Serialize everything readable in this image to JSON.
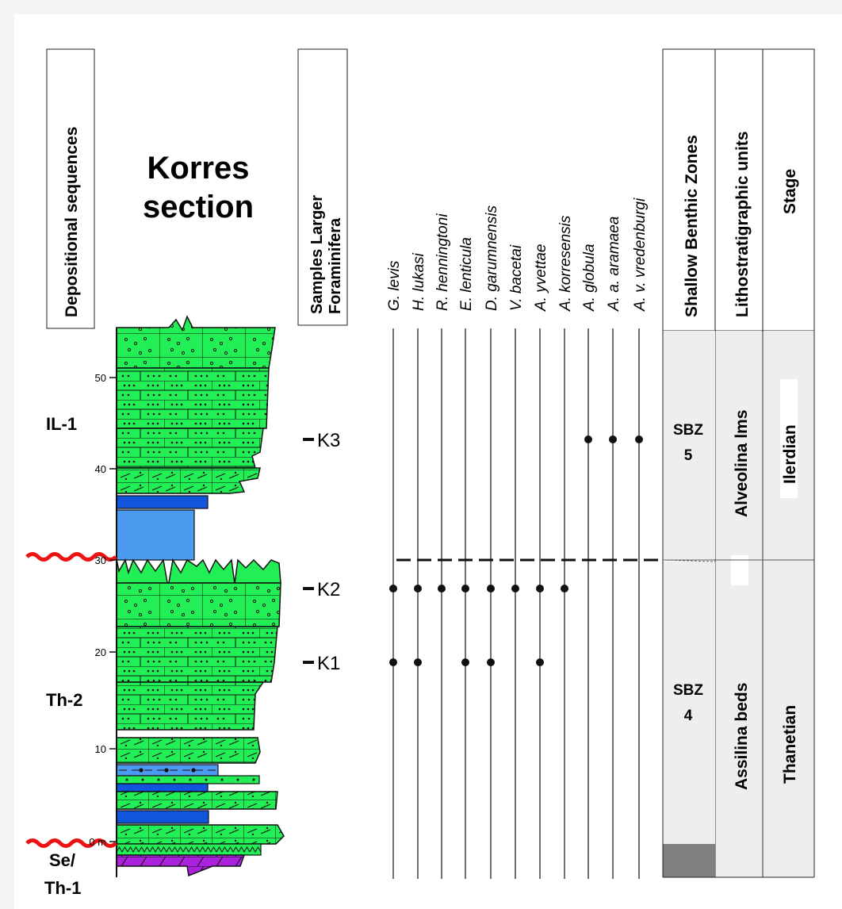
{
  "section": {
    "title_line1": "Korres",
    "title_line2": "section"
  },
  "headers": {
    "depositional": "Depositional sequences",
    "samples_line1": "Samples Larger",
    "samples_line2": "Foraminifera",
    "sbz": "Shallow Benthic Zones",
    "litho": "Lithostratigraphic units",
    "stage": "Stage"
  },
  "scale": {
    "ticks": [
      "50",
      "40",
      "30",
      "20",
      "10",
      "0 m"
    ]
  },
  "sequences": [
    "IL-1",
    "Th-2",
    "Se/",
    "Th-1"
  ],
  "samples": [
    "K3",
    "K2",
    "K1"
  ],
  "taxa": [
    "G. levis",
    "H. lukasi",
    "R. henningtoni",
    "E. lenticula",
    "D. garumnensis",
    "V. bacetai",
    "A. yvettae",
    "A. korresensis",
    "A. globula",
    "A. a. aramaea",
    "A. v. vredenburgi"
  ],
  "occurrences": {
    "K3": [
      false,
      false,
      false,
      false,
      false,
      false,
      false,
      false,
      true,
      true,
      true
    ],
    "K2": [
      true,
      true,
      true,
      true,
      true,
      true,
      true,
      true,
      false,
      false,
      false
    ],
    "K1": [
      true,
      true,
      false,
      true,
      true,
      false,
      true,
      false,
      false,
      false,
      false
    ]
  },
  "zones": {
    "upper_sbz_line1": "SBZ",
    "upper_sbz_line2": "5",
    "lower_sbz_line1": "SBZ",
    "lower_sbz_line2": "4",
    "upper_litho": "Alveolina lms",
    "lower_litho": "Assilina beds",
    "upper_stage": "Ilerdian",
    "lower_stage": "Thanetian"
  },
  "colors": {
    "limestone": "#22ee55",
    "dark_blue": "#1155dd",
    "light_blue": "#4d9bf0",
    "purple": "#aa22dd",
    "unconformity": "#ee1111",
    "zone_fill": "#eeeeee",
    "gray_base": "#808080"
  }
}
